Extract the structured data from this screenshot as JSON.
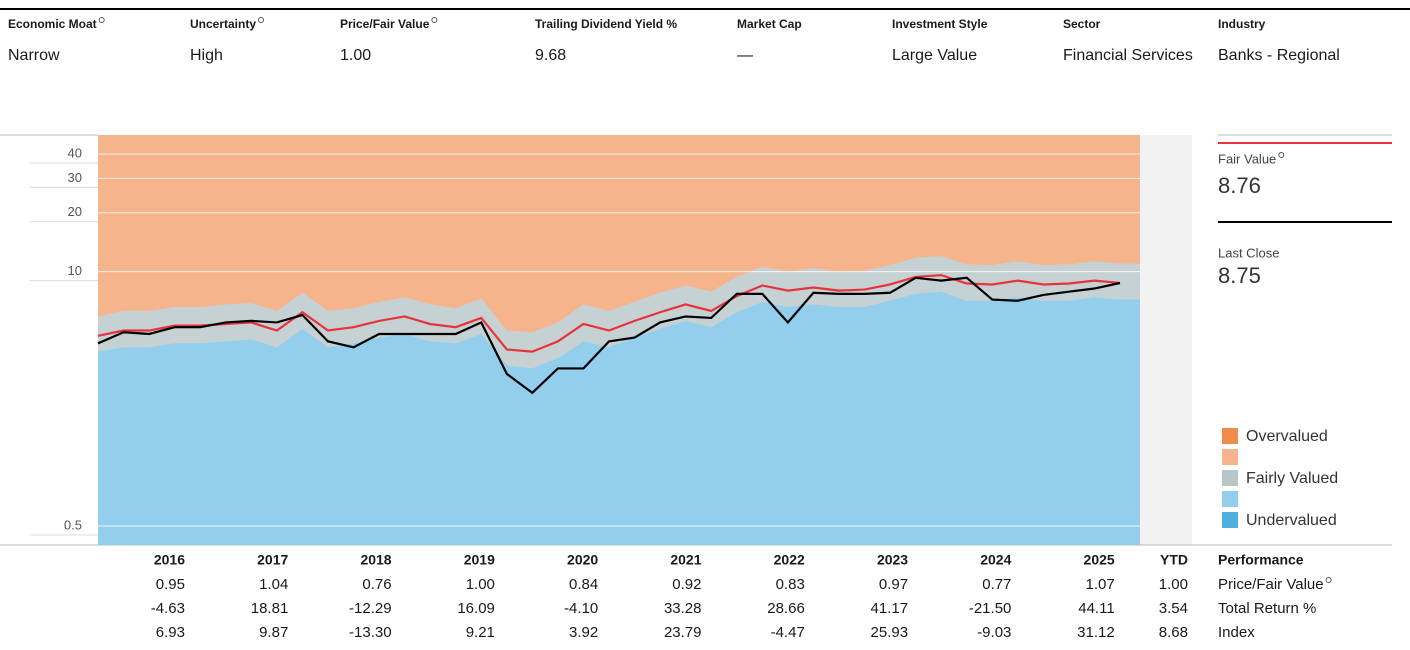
{
  "header": {
    "fields": [
      {
        "label": "Economic Moat",
        "value": "Narrow"
      },
      {
        "label": "Uncertainty",
        "value": "High"
      },
      {
        "label": "Price/Fair Value",
        "value": "1.00"
      },
      {
        "label": "Trailing Dividend Yield %",
        "value": "9.68"
      },
      {
        "label": "Market Cap",
        "value": "—"
      },
      {
        "label": "Investment Style",
        "value": "Large Value"
      },
      {
        "label": "Sector",
        "value": "Financial Services"
      },
      {
        "label": "Industry",
        "value": "Banks - Regional"
      }
    ]
  },
  "chart_data": {
    "type": "line",
    "log_scale": true,
    "grid": true,
    "ylim": [
      0.4,
      50
    ],
    "yticks": [
      0.5,
      10,
      20,
      30,
      40
    ],
    "series": [
      {
        "name": "Fair Value",
        "color": "#e8333b",
        "values": [
          4.7,
          5.0,
          5.0,
          5.3,
          5.3,
          5.4,
          5.5,
          5.0,
          6.2,
          5.0,
          5.2,
          5.6,
          5.9,
          5.4,
          5.2,
          5.8,
          4.0,
          3.9,
          4.4,
          5.4,
          5.0,
          5.6,
          6.2,
          6.8,
          6.3,
          7.5,
          8.5,
          8.0,
          8.3,
          8.0,
          8.1,
          8.6,
          9.4,
          9.6,
          8.7,
          8.6,
          9.0,
          8.6,
          8.7,
          9.0,
          8.76
        ]
      },
      {
        "name": "Last Close",
        "color": "#000000",
        "values": [
          4.3,
          4.9,
          4.8,
          5.2,
          5.2,
          5.5,
          5.6,
          5.5,
          6.0,
          4.4,
          4.1,
          4.8,
          4.8,
          4.8,
          4.8,
          5.5,
          3.0,
          2.4,
          3.2,
          3.2,
          4.4,
          4.6,
          5.5,
          5.9,
          5.8,
          7.7,
          7.7,
          5.5,
          7.8,
          7.7,
          7.7,
          7.8,
          9.3,
          9.0,
          9.3,
          7.2,
          7.1,
          7.6,
          7.9,
          8.2,
          8.75
        ]
      }
    ],
    "bands": [
      {
        "color": "#c6d1d3",
        "values": [
          5.9,
          6.3,
          6.3,
          6.6,
          6.6,
          6.8,
          6.9,
          6.3,
          7.8,
          6.3,
          6.5,
          7.0,
          7.4,
          6.8,
          6.5,
          7.3,
          5.0,
          4.9,
          5.5,
          6.8,
          6.3,
          7.0,
          7.8,
          8.5,
          7.9,
          9.4,
          10.6,
          10.0,
          10.4,
          10.0,
          10.1,
          10.8,
          11.8,
          12.0,
          10.9,
          10.8,
          11.3,
          10.8,
          10.9,
          11.3,
          11.0
        ]
      },
      {
        "color": "#93cfec",
        "values": [
          3.9,
          4.1,
          4.1,
          4.3,
          4.3,
          4.4,
          4.5,
          4.1,
          5.1,
          4.1,
          4.3,
          4.6,
          4.8,
          4.4,
          4.3,
          4.8,
          3.3,
          3.2,
          3.6,
          4.4,
          4.1,
          4.6,
          5.1,
          5.6,
          5.2,
          6.2,
          7.0,
          6.6,
          6.8,
          6.6,
          6.6,
          7.1,
          7.7,
          7.9,
          7.1,
          7.1,
          7.4,
          7.1,
          7.1,
          7.4,
          7.2
        ]
      }
    ],
    "current": [
      {
        "label": "Fair Value",
        "value": "8.76"
      },
      {
        "label": "Last Close",
        "value": "8.75"
      }
    ],
    "legend": [
      {
        "name": "Overvalued",
        "color": "#ef8c4b"
      },
      {
        "name": null,
        "color": "#f6b48c"
      },
      {
        "name": "Fairly Valued",
        "color": "#b9c6c8"
      },
      {
        "name": null,
        "color": "#93cfec"
      },
      {
        "name": "Undervalued",
        "color": "#4fb0e0"
      }
    ]
  },
  "table": {
    "title": "Performance",
    "columns": [
      "2016",
      "2017",
      "2018",
      "2019",
      "2020",
      "2021",
      "2022",
      "2023",
      "2024",
      "2025",
      "YTD"
    ],
    "rows": [
      {
        "label": "Price/Fair Value",
        "cells": [
          "0.95",
          "1.04",
          "0.76",
          "1.00",
          "0.84",
          "0.92",
          "0.83",
          "0.97",
          "0.77",
          "1.07",
          "1.00"
        ]
      },
      {
        "label": "Total Return %",
        "cells": [
          "-4.63",
          "18.81",
          "-12.29",
          "16.09",
          "-4.10",
          "33.28",
          "28.66",
          "41.17",
          "-21.50",
          "44.11",
          "3.54"
        ]
      },
      {
        "label": "Index",
        "cells": [
          "6.93",
          "9.87",
          "-13.30",
          "9.21",
          "3.92",
          "23.79",
          "-4.47",
          "25.93",
          "-9.03",
          "31.12",
          "8.68"
        ]
      }
    ]
  }
}
